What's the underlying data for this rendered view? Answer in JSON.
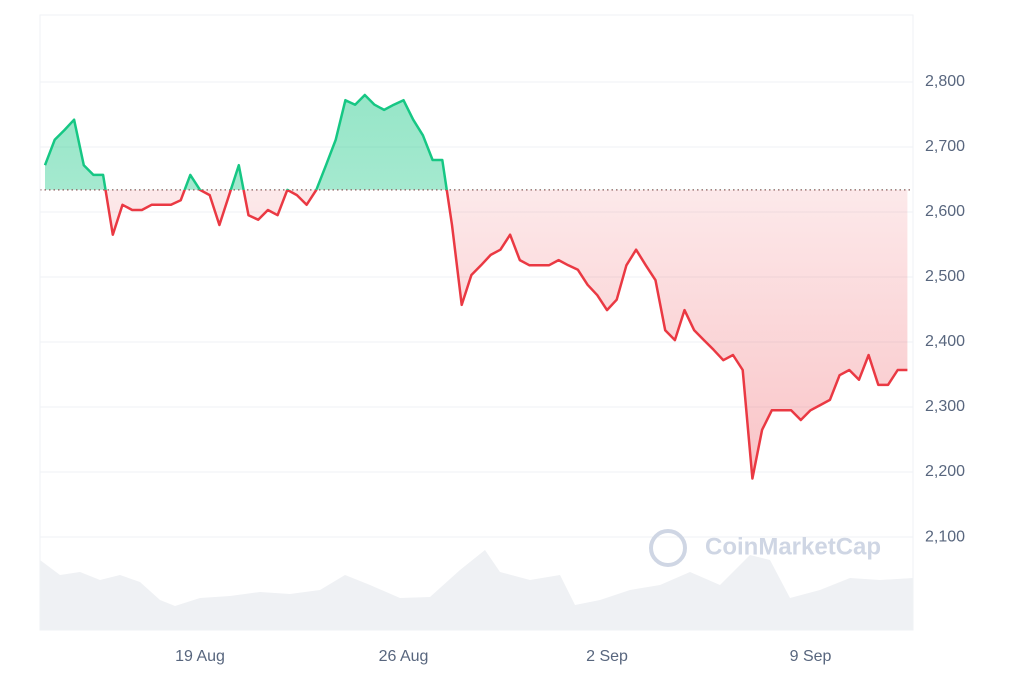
{
  "chart_data": {
    "type": "line",
    "categories": [
      null,
      null,
      null,
      null,
      null,
      null,
      null,
      null,
      null,
      null,
      null,
      null,
      null,
      null,
      null,
      null,
      "19 Aug",
      null,
      null,
      null,
      null,
      null,
      null,
      null,
      null,
      null,
      null,
      null,
      null,
      null,
      null,
      null,
      null,
      null,
      null,
      null,
      null,
      "26 Aug",
      null,
      null,
      null,
      null,
      null,
      null,
      null,
      null,
      null,
      null,
      null,
      null,
      null,
      null,
      null,
      null,
      null,
      null,
      null,
      null,
      "2 Sep",
      null,
      null,
      null,
      null,
      null,
      null,
      null,
      null,
      null,
      null,
      null,
      null,
      null,
      null,
      null,
      null,
      null,
      null,
      null,
      null,
      "9 Sep",
      null,
      null,
      null,
      null,
      null,
      null,
      null,
      null,
      null,
      null
    ],
    "values": [
      2672,
      2711,
      2726,
      2742,
      2672,
      2657,
      2657,
      2565,
      2611,
      2603,
      2603,
      2611,
      2611,
      2611,
      2618,
      2657,
      2634,
      2626,
      2580,
      2626,
      2672,
      2595,
      2588,
      2603,
      2595,
      2634,
      2626,
      2611,
      2634,
      2672,
      2711,
      2772,
      2765,
      2780,
      2765,
      2757,
      2765,
      2772,
      2742,
      2718,
      2680,
      2680,
      2580,
      2457,
      2503,
      2518,
      2534,
      2542,
      2565,
      2526,
      2518,
      2518,
      2518,
      2526,
      2518,
      2511,
      2488,
      2472,
      2449,
      2465,
      2518,
      2542,
      2518,
      2495,
      2418,
      2403,
      2449,
      2418,
      2403,
      2388,
      2372,
      2380,
      2357,
      2190,
      2265,
      2295,
      2295,
      2295,
      2280,
      2295,
      2303,
      2311,
      2349,
      2357,
      2342,
      2380,
      2334,
      2334,
      2357,
      2357
    ],
    "reference_value": 2634,
    "up_color": "#16c784",
    "down_color": "#ea3943",
    "ylim": [
      1957,
      2903
    ],
    "yticks": [
      {
        "value": 2100,
        "label": "2,100"
      },
      {
        "value": 2200,
        "label": "2,200"
      },
      {
        "value": 2300,
        "label": "2,300"
      },
      {
        "value": 2400,
        "label": "2,400"
      },
      {
        "value": 2500,
        "label": "2,500"
      },
      {
        "value": 2600,
        "label": "2,600"
      },
      {
        "value": 2700,
        "label": "2,700"
      },
      {
        "value": 2800,
        "label": "2,800"
      }
    ],
    "grid": true,
    "watermark": "CoinMarketCap"
  }
}
